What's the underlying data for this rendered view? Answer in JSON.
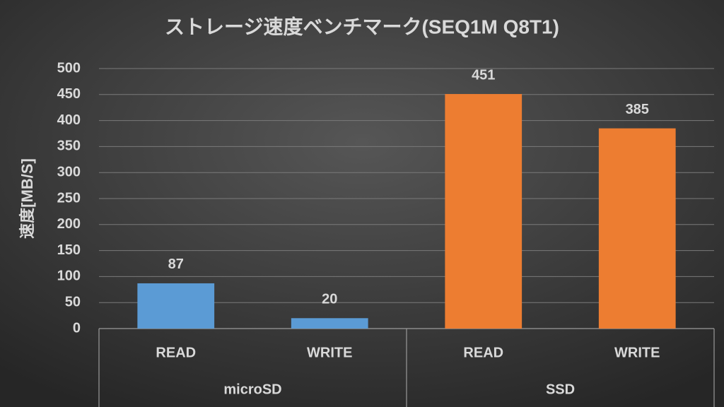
{
  "chart_data": {
    "type": "grouped-bar",
    "title": "ストレージ速度ベンチマーク(SEQ1M Q8T1)",
    "y_label": "速度[MB/S]",
    "groups": [
      {
        "name": "microSD",
        "color": "#5b9bd5",
        "categories": [
          "READ",
          "WRITE"
        ],
        "values": [
          87,
          20
        ]
      },
      {
        "name": "SSD",
        "color": "#ed7d31",
        "categories": [
          "READ",
          "WRITE"
        ],
        "values": [
          451,
          385
        ]
      }
    ],
    "ylim": [
      0,
      500
    ],
    "yticks": [
      0,
      50,
      100,
      150,
      200,
      250,
      300,
      350,
      400,
      450,
      500
    ],
    "grid": true
  }
}
